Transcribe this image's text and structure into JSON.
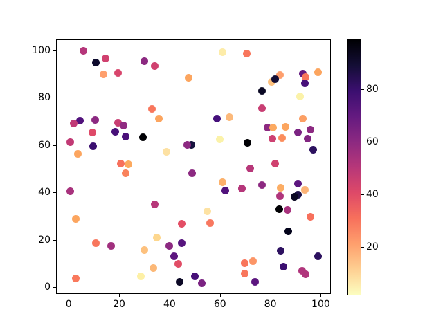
{
  "chart_data": {
    "type": "scatter",
    "title": "",
    "xlabel": "",
    "ylabel": "",
    "x_ticks": [
      0,
      20,
      40,
      60,
      80,
      100
    ],
    "y_ticks": [
      0,
      20,
      40,
      60,
      80,
      100
    ],
    "xlim": [
      -5,
      104
    ],
    "ylim": [
      -2.9,
      104.7
    ],
    "grid": false,
    "marker_diameter_px": 11,
    "colormap": "magma_r",
    "colorbar": {
      "ticks": [
        20,
        40,
        60,
        80
      ],
      "vmin": 1.6,
      "vmax": 99.1,
      "gradient_top_to_bottom": [
        "#000004",
        "#140e36",
        "#3b0f70",
        "#641a80",
        "#8c2981",
        "#b73779",
        "#de4968",
        "#f7705c",
        "#fe9f6d",
        "#fecf92",
        "#fcfdbf"
      ]
    },
    "points": [
      [
        5.8,
        99.9,
        "#b5367a"
      ],
      [
        14.7,
        96.8,
        "#d0416f"
      ],
      [
        10.8,
        94.8,
        "#0d0b2d"
      ],
      [
        19.6,
        90.5,
        "#d8456c"
      ],
      [
        13.9,
        89.9,
        "#fe9f6d"
      ],
      [
        29.9,
        95.5,
        "#8c2981"
      ],
      [
        60.9,
        99.2,
        "#fdeca9"
      ],
      [
        70.7,
        98.6,
        "#f8765c"
      ],
      [
        34.0,
        93.4,
        "#d0416f"
      ],
      [
        47.7,
        88.5,
        "#fca55f"
      ],
      [
        83.8,
        89.7,
        "#fe9f6d"
      ],
      [
        80.6,
        86.6,
        "#fdc17e"
      ],
      [
        81.8,
        88.0,
        "#140e36"
      ],
      [
        93.0,
        90.1,
        "#641a80"
      ],
      [
        94.1,
        88.7,
        "#f8765c"
      ],
      [
        93.8,
        86.1,
        "#47107a"
      ],
      [
        99.0,
        90.9,
        "#fca55f"
      ],
      [
        76.7,
        83.0,
        "#0b0924"
      ],
      [
        91.7,
        80.6,
        "#fbf2a9"
      ],
      [
        4.6,
        70.4,
        "#51127c"
      ],
      [
        2.1,
        69.2,
        "#c03a76"
      ],
      [
        10.6,
        70.7,
        "#8c2981"
      ],
      [
        19.6,
        69.4,
        "#c83e73"
      ],
      [
        21.9,
        68.2,
        "#902a81"
      ],
      [
        9.5,
        65.5,
        "#de4968"
      ],
      [
        18.5,
        65.8,
        "#471078"
      ],
      [
        22.6,
        63.5,
        "#4a1079"
      ],
      [
        29.5,
        63.4,
        "#000004"
      ],
      [
        0.7,
        61.2,
        "#c13a75"
      ],
      [
        9.7,
        59.5,
        "#3b0f70"
      ],
      [
        3.7,
        56.2,
        "#fca55f"
      ],
      [
        20.7,
        52.1,
        "#f7705c"
      ],
      [
        23.7,
        51.8,
        "#fca95e"
      ],
      [
        32.9,
        75.2,
        "#f8765c"
      ],
      [
        35.8,
        71.1,
        "#fca55f"
      ],
      [
        58.9,
        71.1,
        "#45107b"
      ],
      [
        63.8,
        71.9,
        "#fcb97a"
      ],
      [
        76.8,
        75.5,
        "#c83e73"
      ],
      [
        93.0,
        71.3,
        "#fc9f64"
      ],
      [
        48.6,
        60.0,
        "#16123e"
      ],
      [
        46.9,
        60.2,
        "#8c2981"
      ],
      [
        59.9,
        62.5,
        "#fbf2a9"
      ],
      [
        38.8,
        57.3,
        "#fde1a3"
      ],
      [
        70.8,
        61.1,
        "#000004"
      ],
      [
        79.0,
        67.3,
        "#8c2981"
      ],
      [
        81.1,
        67.4,
        "#fcaa61"
      ],
      [
        86.0,
        67.7,
        "#fca55f"
      ],
      [
        91.0,
        65.5,
        "#7b2382"
      ],
      [
        96.0,
        66.5,
        "#8c2981"
      ],
      [
        80.8,
        62.6,
        "#cd4071"
      ],
      [
        84.7,
        63.1,
        "#fb8d5c"
      ],
      [
        94.9,
        62.6,
        "#822581"
      ],
      [
        96.9,
        58.2,
        "#2c115f"
      ],
      [
        82.0,
        52.1,
        "#d0416f"
      ],
      [
        72.0,
        50.2,
        "#b73779"
      ],
      [
        22.6,
        48.0,
        "#f9825c"
      ],
      [
        48.9,
        48.2,
        "#8c2981"
      ],
      [
        60.9,
        44.2,
        "#fcb16b"
      ],
      [
        62.1,
        40.7,
        "#51127c"
      ],
      [
        68.8,
        41.8,
        "#b5367a"
      ],
      [
        76.8,
        43.1,
        "#8c2981"
      ],
      [
        84.1,
        41.9,
        "#fcad64"
      ],
      [
        83.9,
        38.5,
        "#b0357c"
      ],
      [
        91.0,
        43.7,
        "#5c167f"
      ],
      [
        93.8,
        41.2,
        "#fcb376"
      ],
      [
        90.9,
        39.1,
        "#1d1147"
      ],
      [
        89.6,
        38.3,
        "#0a0822"
      ],
      [
        83.6,
        32.8,
        "#000004"
      ],
      [
        86.9,
        32.7,
        "#a8327d"
      ],
      [
        96.0,
        29.8,
        "#f7705c"
      ],
      [
        87.1,
        23.7,
        "#02021a"
      ],
      [
        0.5,
        40.6,
        "#a8327d"
      ],
      [
        34.0,
        34.9,
        "#b73779"
      ],
      [
        54.9,
        32.0,
        "#fde2a3"
      ],
      [
        44.8,
        26.8,
        "#e34e65"
      ],
      [
        56.0,
        27.0,
        "#f87860"
      ],
      [
        34.9,
        20.8,
        "#fdd78f"
      ],
      [
        39.8,
        17.5,
        "#8c2981"
      ],
      [
        44.8,
        18.7,
        "#57157e"
      ],
      [
        41.8,
        12.9,
        "#5c167f"
      ],
      [
        43.4,
        9.7,
        "#e14d66"
      ],
      [
        33.6,
        8.1,
        "#fcb877"
      ],
      [
        2.8,
        28.9,
        "#fca55f"
      ],
      [
        10.8,
        18.7,
        "#f8765c"
      ],
      [
        16.8,
        17.5,
        "#a1307e"
      ],
      [
        29.9,
        15.6,
        "#fdc17e"
      ],
      [
        2.8,
        3.6,
        "#f9795c"
      ],
      [
        28.7,
        4.7,
        "#fdf0a6"
      ],
      [
        43.9,
        2.3,
        "#0c0926"
      ],
      [
        50.1,
        4.6,
        "#471078"
      ],
      [
        52.9,
        1.7,
        "#7b2382"
      ],
      [
        84.0,
        15.4,
        "#2d1160"
      ],
      [
        99.0,
        13.0,
        "#2c115f"
      ],
      [
        69.9,
        10.2,
        "#f8765c"
      ],
      [
        73.1,
        10.9,
        "#fc9567"
      ],
      [
        69.9,
        5.8,
        "#f8765c"
      ],
      [
        74.0,
        2.1,
        "#5c167f"
      ],
      [
        85.2,
        8.6,
        "#3b0f70"
      ],
      [
        92.6,
        6.8,
        "#b0357c"
      ],
      [
        93.9,
        5.4,
        "#b0357c"
      ]
    ]
  },
  "layout_colors": {
    "background": "#ffffff",
    "spine": "#000000",
    "tick_label": "#000000"
  }
}
